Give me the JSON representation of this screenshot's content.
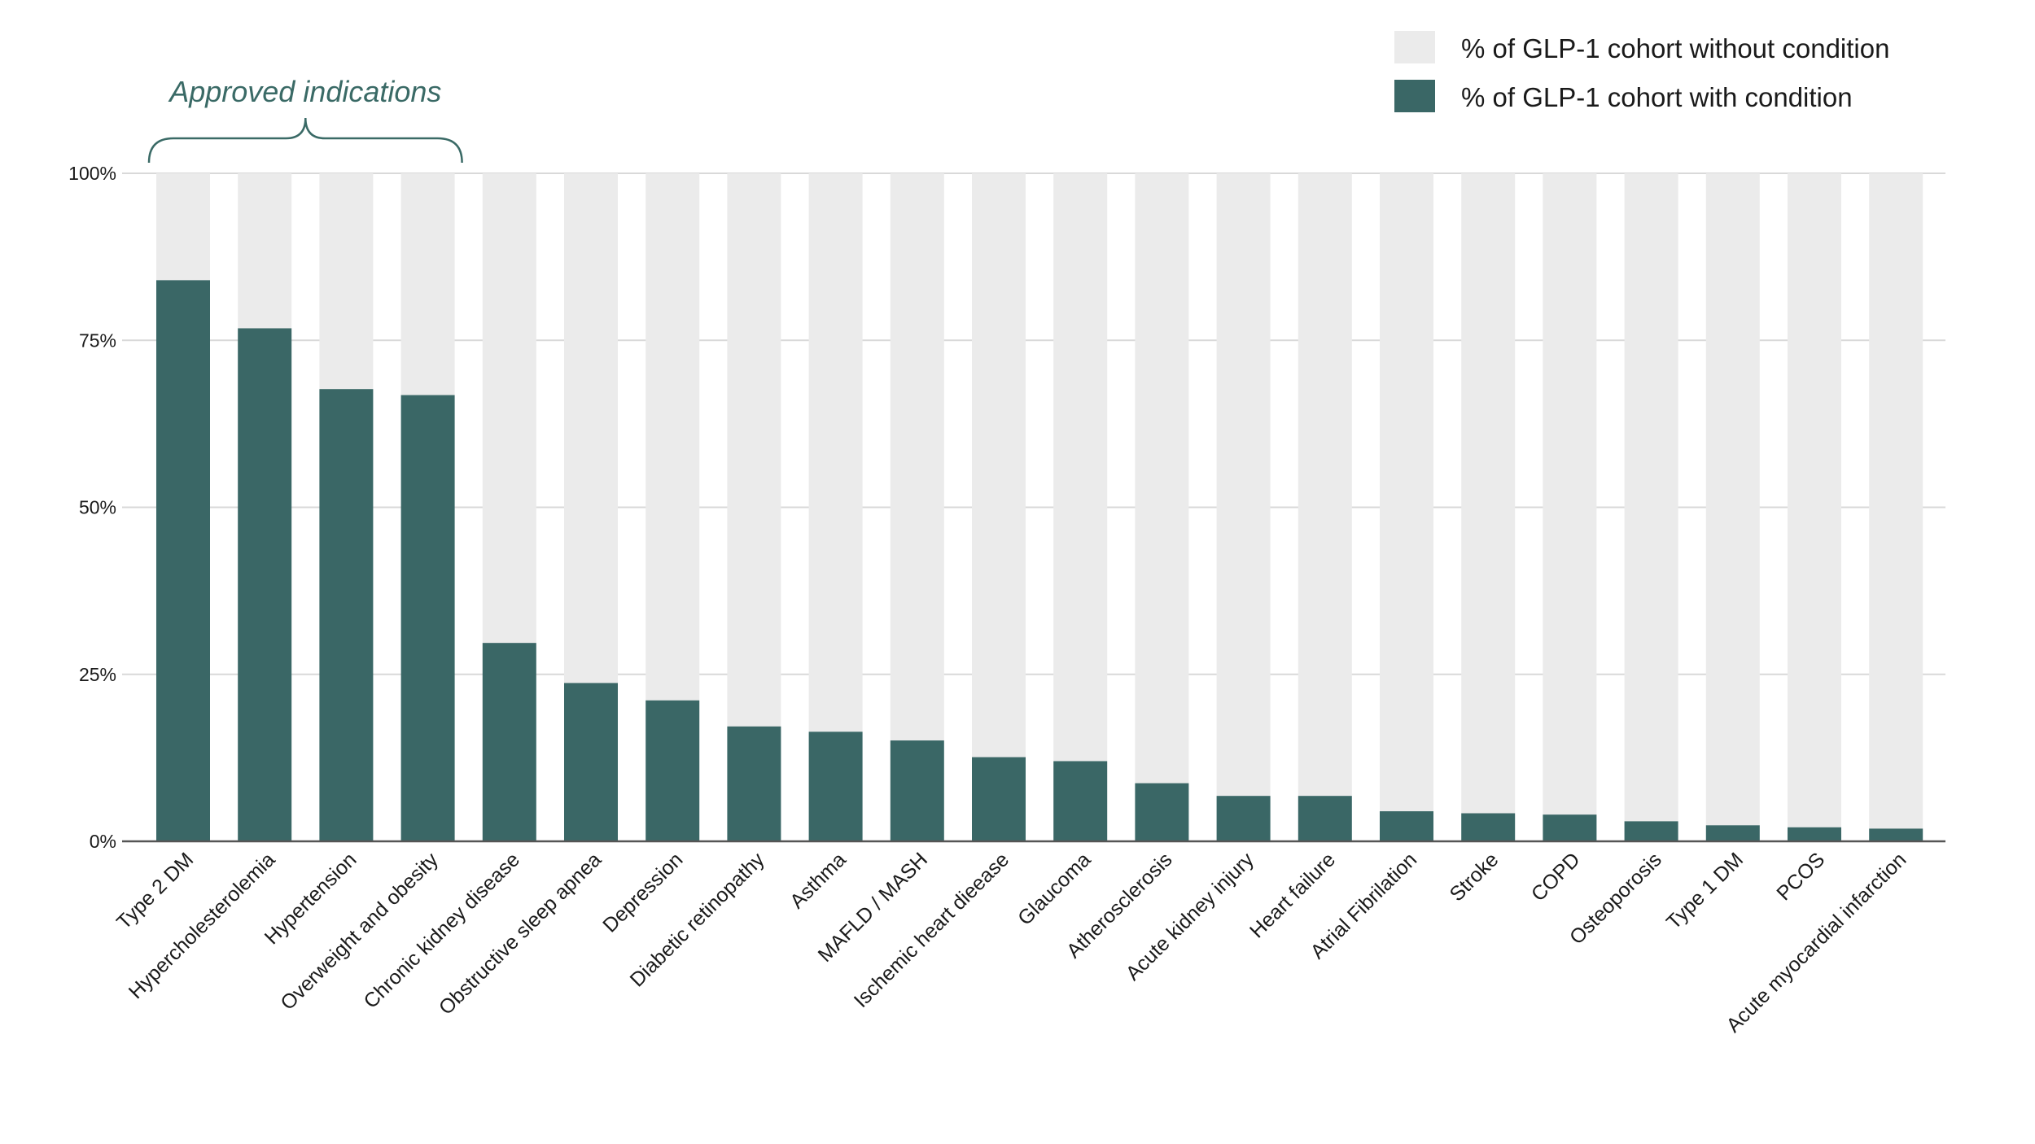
{
  "colors": {
    "with_condition": "#3a6766",
    "without_condition": "#ebebeb",
    "gridline": "#d9d9d9",
    "axis": "#555555",
    "annotation": "#3a6a66"
  },
  "chart_data": {
    "type": "bar",
    "stacked": true,
    "title": "",
    "xlabel": "",
    "ylabel": "",
    "ylim": [
      0,
      100
    ],
    "yticks": [
      {
        "value": 0,
        "label": "0%"
      },
      {
        "value": 25,
        "label": "25%"
      },
      {
        "value": 50,
        "label": "50%"
      },
      {
        "value": 75,
        "label": "75%"
      },
      {
        "value": 100,
        "label": "100%"
      }
    ],
    "grid": true,
    "legend_position": "top-right",
    "categories": [
      "Type 2 DM",
      "Hypercholesterolemia",
      "Hypertension",
      "Overweight and obesity",
      "Chronic kidney disease",
      "Obstructive sleep apnea",
      "Depression",
      "Diabetic retinopathy",
      "Asthma",
      "MAFLD / MASH",
      "Ischemic heart dieease",
      "Glaucoma",
      "Atherosclerosis",
      "Acute kidney injury",
      "Heart failure",
      "Atrial Fibrilation",
      "Stroke",
      "COPD",
      "Osteoporosis",
      "Type 1 DM",
      "PCOS",
      "Acute myocardial infarction"
    ],
    "series": [
      {
        "name": "% of GLP-1 cohort with condition",
        "values": [
          84,
          76.8,
          67.7,
          66.8,
          29.7,
          23.7,
          21.1,
          17.2,
          16.4,
          15.1,
          12.6,
          12.0,
          8.7,
          6.8,
          6.8,
          4.5,
          4.2,
          4.0,
          3.0,
          2.4,
          2.1,
          1.9
        ]
      },
      {
        "name": "% of GLP-1 cohort without condition",
        "values": [
          16,
          23.2,
          32.3,
          33.2,
          70.3,
          76.3,
          78.9,
          82.8,
          83.6,
          84.9,
          87.4,
          88.0,
          91.3,
          93.2,
          93.2,
          95.5,
          95.8,
          96.0,
          97.0,
          97.6,
          97.9,
          98.1
        ]
      }
    ],
    "legend": [
      {
        "label": "% of GLP-1 cohort without condition",
        "color": "#ebebeb"
      },
      {
        "label": "% of GLP-1 cohort with condition",
        "color": "#3a6766"
      }
    ],
    "annotations": [
      {
        "text": "Approved indications",
        "categories_from": 0,
        "categories_to": 3
      }
    ]
  }
}
